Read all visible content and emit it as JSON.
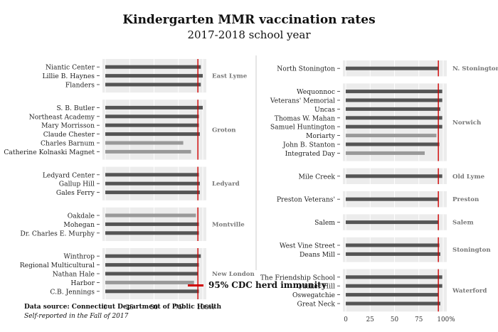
{
  "title": "Kindergarten MMR vaccination rates",
  "subtitle": "2017-2018 school year",
  "legend": {
    "label": "95% CDC herd immunity",
    "color": "#d00000"
  },
  "source": "Data source: Connecticut Department of Public Health",
  "note": "Self-reported in the Fall of 2017",
  "colors": {
    "bar": "#555555",
    "bar_light": "#999999",
    "panel": "#ececec",
    "threshold": "#d00000"
  },
  "chart_data": {
    "type": "bar",
    "orientation": "horizontal",
    "unit": "%",
    "xlim": [
      0,
      100
    ],
    "x_ticks": [
      "0",
      "25",
      "50",
      "75",
      "100%"
    ],
    "threshold": 95,
    "columns": [
      {
        "groups": [
          {
            "town": "East Lyme",
            "schools": [
              {
                "name": "Niantic Center",
                "value": 98,
                "below": false
              },
              {
                "name": "Lillie B. Haynes",
                "value": 100,
                "below": false
              },
              {
                "name": "Flanders",
                "value": 98,
                "below": false
              }
            ]
          },
          {
            "town": "Groton",
            "schools": [
              {
                "name": "S. B. Butler",
                "value": 100,
                "below": false
              },
              {
                "name": "Northeast Academy",
                "value": 96,
                "below": false
              },
              {
                "name": "Mary Morrisson",
                "value": 96,
                "below": false
              },
              {
                "name": "Claude Chester",
                "value": 97,
                "below": false
              },
              {
                "name": "Charles Barnum",
                "value": 80,
                "below": true
              },
              {
                "name": "Catherine Kolnaski Magnet",
                "value": 88,
                "below": true
              }
            ]
          },
          {
            "town": "Ledyard",
            "schools": [
              {
                "name": "Ledyard Center",
                "value": 96,
                "below": false
              },
              {
                "name": "Gallup Hill",
                "value": 97,
                "below": false
              },
              {
                "name": "Gales Ferry",
                "value": 97,
                "below": false
              }
            ]
          },
          {
            "town": "Montville",
            "schools": [
              {
                "name": "Oakdale",
                "value": 93,
                "below": true
              },
              {
                "name": "Mohegan",
                "value": 96,
                "below": false
              },
              {
                "name": "Dr. Charles E. Murphy",
                "value": 96,
                "below": false
              }
            ]
          },
          {
            "town": "New London",
            "schools": [
              {
                "name": "Winthrop",
                "value": 98,
                "below": false
              },
              {
                "name": "Regional Multicultural",
                "value": 96,
                "below": false
              },
              {
                "name": "Nathan Hale",
                "value": 95,
                "below": false
              },
              {
                "name": "Harbor",
                "value": 91,
                "below": true
              },
              {
                "name": "C.B. Jennings",
                "value": 96,
                "below": false
              }
            ]
          }
        ]
      },
      {
        "groups": [
          {
            "town": "N. Stonington",
            "schools": [
              {
                "name": "North Stonington",
                "value": 95,
                "below": false
              }
            ]
          },
          {
            "town": "Norwich",
            "schools": [
              {
                "name": "Wequonnoc",
                "value": 99,
                "below": false
              },
              {
                "name": "Veterans' Memorial",
                "value": 99,
                "below": false
              },
              {
                "name": "Uncas",
                "value": 97,
                "below": false
              },
              {
                "name": "Thomas W. Mahan",
                "value": 99,
                "below": false
              },
              {
                "name": "Samuel Huntington",
                "value": 99,
                "below": false
              },
              {
                "name": "Moriarty",
                "value": 93,
                "below": true
              },
              {
                "name": "John B. Stanton",
                "value": 96,
                "below": false
              },
              {
                "name": "Integrated Day",
                "value": 81,
                "below": true
              }
            ]
          },
          {
            "town": "Old Lyme",
            "schools": [
              {
                "name": "Mile Creek",
                "value": 99,
                "below": false
              }
            ]
          },
          {
            "town": "Preston",
            "schools": [
              {
                "name": "Preston Veterans'",
                "value": 95,
                "below": false
              }
            ]
          },
          {
            "town": "Salem",
            "schools": [
              {
                "name": "Salem",
                "value": 95,
                "below": false
              }
            ]
          },
          {
            "town": "Stonington",
            "schools": [
              {
                "name": "West Vine Street",
                "value": 96,
                "below": false
              },
              {
                "name": "Deans Mill",
                "value": 97,
                "below": false
              }
            ]
          },
          {
            "town": "Waterford",
            "schools": [
              {
                "name": "The Friendship School",
                "value": 99,
                "below": false
              },
              {
                "name": "Quaker Hill",
                "value": 99,
                "below": false
              },
              {
                "name": "Oswegatchie",
                "value": 95,
                "below": false
              },
              {
                "name": "Great Neck",
                "value": 97,
                "below": false
              }
            ]
          }
        ]
      }
    ]
  }
}
